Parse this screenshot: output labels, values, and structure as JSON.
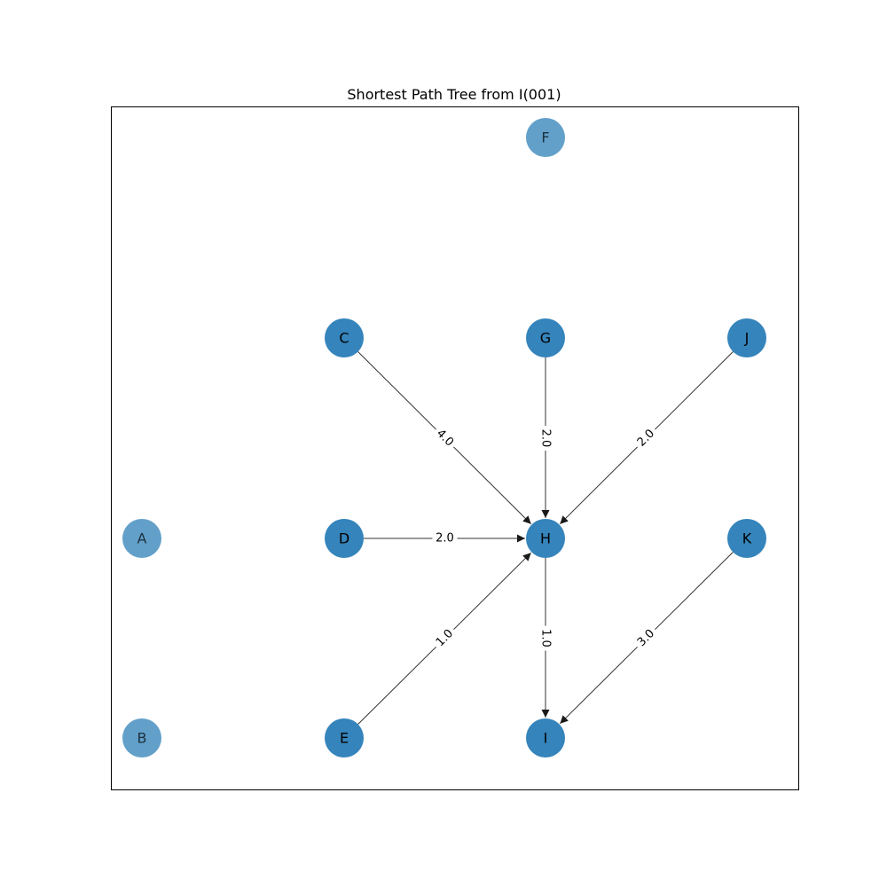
{
  "title": "Shortest Path Tree from I(001)",
  "colors": {
    "node": "#1f77b4",
    "edge": "#333333",
    "label_text": "#000000",
    "frame": "#000000"
  },
  "nodes": [
    {
      "id": "A",
      "in_tree": false
    },
    {
      "id": "B",
      "in_tree": false
    },
    {
      "id": "C",
      "in_tree": true
    },
    {
      "id": "D",
      "in_tree": true
    },
    {
      "id": "E",
      "in_tree": true
    },
    {
      "id": "F",
      "in_tree": false
    },
    {
      "id": "G",
      "in_tree": true
    },
    {
      "id": "H",
      "in_tree": true
    },
    {
      "id": "I",
      "in_tree": true
    },
    {
      "id": "J",
      "in_tree": true
    },
    {
      "id": "K",
      "in_tree": true
    }
  ],
  "edges": [
    {
      "source": "C",
      "target": "H",
      "weight": "4.0"
    },
    {
      "source": "G",
      "target": "H",
      "weight": "2.0"
    },
    {
      "source": "J",
      "target": "H",
      "weight": "2.0"
    },
    {
      "source": "D",
      "target": "H",
      "weight": "2.0"
    },
    {
      "source": "E",
      "target": "H",
      "weight": "1.0"
    },
    {
      "source": "H",
      "target": "I",
      "weight": "1.0"
    },
    {
      "source": "K",
      "target": "I",
      "weight": "3.0"
    }
  ]
}
